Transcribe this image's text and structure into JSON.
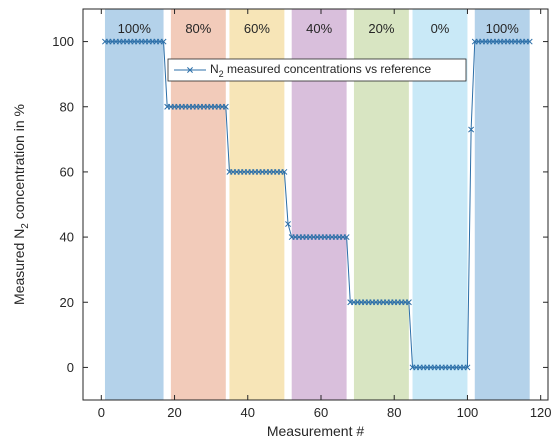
{
  "chart_data": {
    "type": "line",
    "title": "",
    "xlabel": "Measurement #",
    "ylabel_parts": {
      "pre": "Measured N",
      "sub": "2",
      "post": " concentration in %"
    },
    "xlim": [
      -5,
      122
    ],
    "ylim": [
      -10,
      110
    ],
    "xticks": [
      0,
      20,
      40,
      60,
      80,
      100,
      120
    ],
    "yticks": [
      0,
      20,
      40,
      60,
      80,
      100
    ],
    "grid": false,
    "legend": {
      "placement": "upper-right",
      "parts": {
        "pre": "N",
        "sub": "2",
        "post": " measured concentrations vs reference"
      }
    },
    "bands": [
      {
        "label": "100%",
        "x_start": 1,
        "x_end": 17,
        "color": "#b4d2ea"
      },
      {
        "label": "80%",
        "x_start": 19,
        "x_end": 34,
        "color": "#f2cbba"
      },
      {
        "label": "60%",
        "x_start": 35,
        "x_end": 50,
        "color": "#f7e5b7"
      },
      {
        "label": "40%",
        "x_start": 52,
        "x_end": 67,
        "color": "#d9bfdc"
      },
      {
        "label": "20%",
        "x_start": 69,
        "x_end": 84,
        "color": "#d8e5c2"
      },
      {
        "label": "0%",
        "x_start": 85,
        "x_end": 100,
        "color": "#c9e9f7"
      },
      {
        "label": "100%",
        "x_start": 102,
        "x_end": 117,
        "color": "#b4d2ea"
      }
    ],
    "series_color": "#2c6fa8",
    "series": [
      {
        "segments": [
          {
            "x_start": 1,
            "x_end": 17,
            "y": 100
          },
          {
            "x_start": 18,
            "x_end": 34,
            "y": 80
          },
          {
            "x_start": 35,
            "x_end": 50,
            "y": 60
          },
          {
            "x_start": 51,
            "x_end": 51,
            "y": 44
          },
          {
            "x_start": 52,
            "x_end": 67,
            "y": 40
          },
          {
            "x_start": 68,
            "x_end": 84,
            "y": 20
          },
          {
            "x_start": 85,
            "x_end": 100,
            "y": 0
          },
          {
            "x_start": 101,
            "x_end": 101,
            "y": 73
          },
          {
            "x_start": 102,
            "x_end": 117,
            "y": 100
          }
        ]
      }
    ]
  }
}
